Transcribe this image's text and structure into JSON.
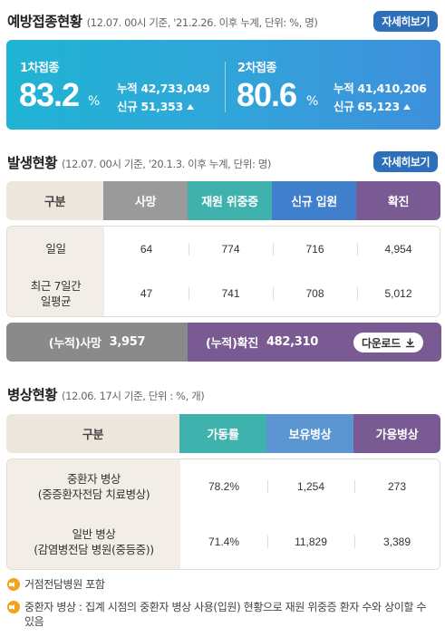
{
  "vaccination": {
    "title": "예방접종현황",
    "subtitle": "(12.07. 00시 기준, '21.2.26. 이후 누계, 단위: %, 명)",
    "more_label": "자세히보기",
    "dose1": {
      "label": "1차접종",
      "pct": "83.2",
      "unit": "%",
      "cum_key": "누적",
      "cum_val": "42,733,049",
      "new_key": "신규",
      "new_val": "51,353"
    },
    "dose2": {
      "label": "2차접종",
      "pct": "80.6",
      "unit": "%",
      "cum_key": "누적",
      "cum_val": "41,410,206",
      "new_key": "신규",
      "new_val": "65,123"
    }
  },
  "occurrence": {
    "title": "발생현황",
    "subtitle": "(12.07. 00시 기준, '20.1.3. 이후 누계, 단위: 명)",
    "more_label": "자세히보기",
    "headers": [
      "구분",
      "사망",
      "재원 위중증",
      "신규 입원",
      "확진"
    ],
    "rows": [
      {
        "label": "일일",
        "values": [
          "64",
          "774",
          "716",
          "4,954"
        ]
      },
      {
        "label": "최근 7일간\n일평균",
        "values": [
          "47",
          "741",
          "708",
          "5,012"
        ]
      }
    ],
    "cum_death_label": "(누적)사망",
    "cum_death_value": "3,957",
    "cum_confirmed_label": "(누적)확진",
    "cum_confirmed_value": "482,310",
    "download_label": "다운로드"
  },
  "beds": {
    "title": "병상현황",
    "subtitle": "(12.06. 17시 기준, 단위 : %, 개)",
    "headers": [
      "구분",
      "가동률",
      "보유병상",
      "가용병상"
    ],
    "rows": [
      {
        "label": "중환자 병상\n(중증환자전담 치료병상)",
        "values": [
          "78.2%",
          "1,254",
          "273"
        ]
      },
      {
        "label": "일반 병상\n(감염병전담 병원(중등중))",
        "values": [
          "71.4%",
          "11,829",
          "3,389"
        ]
      }
    ]
  },
  "notes": [
    "거점전담병원 포함",
    "중환자 병상 : 집계 시점의 중환자 병상 사용(입원) 현황으로 재원 위중증 환자 수와 상이할 수 있음"
  ],
  "colors": {
    "accent_blue": "#2e6fba",
    "death": "#9a9a9a",
    "severe": "#3fb2ad",
    "admission": "#3f7fcb",
    "confirmed": "#7a5a92",
    "beds_rate": "#3fb2ad",
    "beds_total": "#5b96d3",
    "beds_available": "#7a5a92"
  }
}
